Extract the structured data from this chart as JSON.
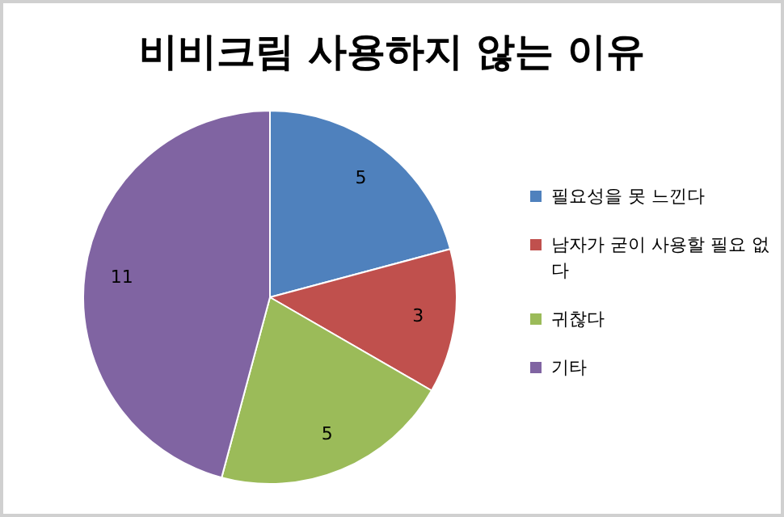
{
  "chart_data": {
    "type": "pie",
    "title": "비비크림 사용하지 않는 이유",
    "categories": [
      "필요성을 못 느낀다",
      "남자가 굳이 사용할 필요 없다",
      "귀찮다",
      "기타"
    ],
    "values": [
      5,
      3,
      5,
      11
    ],
    "colors": [
      "#4f81bd",
      "#c0504d",
      "#9bbb59",
      "#8064a2"
    ],
    "data_labels": true,
    "legend": "right"
  }
}
